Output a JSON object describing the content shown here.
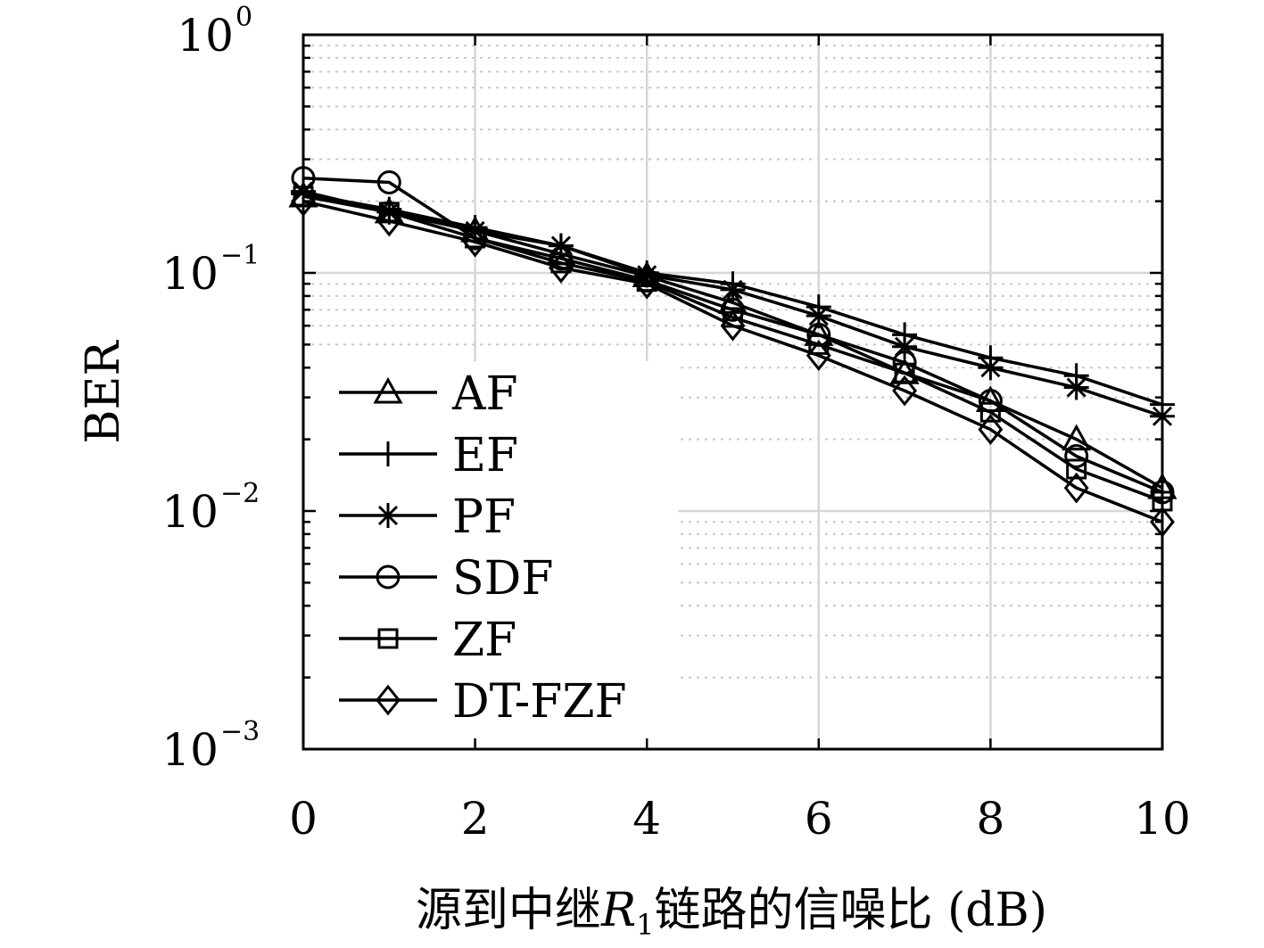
{
  "chart_data": {
    "type": "line",
    "xlabel": "源到中继",
    "xlabel_var": "R",
    "xlabel_var_sub": "1",
    "xlabel_suffix": "链路的信噪比 (dB)",
    "ylabel": "BER",
    "xlim": [
      0,
      10
    ],
    "ylim": [
      0.001,
      1
    ],
    "yscale": "log",
    "grid": true,
    "legend_position": "lower-left",
    "x_ticks": [
      "0",
      "2",
      "4",
      "6",
      "8",
      "10"
    ],
    "y_ticks": [
      {
        "base": "10",
        "exp": "0"
      },
      {
        "base": "10",
        "exp": "−1"
      },
      {
        "base": "10",
        "exp": "−2"
      },
      {
        "base": "10",
        "exp": "−3"
      }
    ],
    "x": [
      0,
      1,
      2,
      3,
      4,
      5,
      6,
      7,
      8,
      9,
      10
    ],
    "series": [
      {
        "name": "AF",
        "marker": "triangle",
        "values": [
          0.21,
          0.18,
          0.15,
          0.12,
          0.097,
          0.075,
          0.055,
          0.038,
          0.029,
          0.02,
          0.0125
        ]
      },
      {
        "name": "EF",
        "marker": "plus",
        "values": [
          0.215,
          0.185,
          0.155,
          0.13,
          0.1,
          0.09,
          0.072,
          0.055,
          0.044,
          0.037,
          0.028
        ]
      },
      {
        "name": "PF",
        "marker": "star",
        "values": [
          0.22,
          0.18,
          0.15,
          0.13,
          0.098,
          0.085,
          0.066,
          0.049,
          0.04,
          0.033,
          0.025
        ]
      },
      {
        "name": "SDF",
        "marker": "circle",
        "values": [
          0.25,
          0.24,
          0.14,
          0.115,
          0.093,
          0.07,
          0.055,
          0.042,
          0.029,
          0.017,
          0.012
        ]
      },
      {
        "name": "ZF",
        "marker": "square",
        "values": [
          0.21,
          0.18,
          0.14,
          0.11,
          0.092,
          0.065,
          0.05,
          0.038,
          0.026,
          0.015,
          0.011
        ]
      },
      {
        "name": "DT-FZF",
        "marker": "diamond",
        "values": [
          0.2,
          0.165,
          0.135,
          0.105,
          0.09,
          0.06,
          0.045,
          0.032,
          0.022,
          0.0125,
          0.009
        ]
      }
    ]
  }
}
